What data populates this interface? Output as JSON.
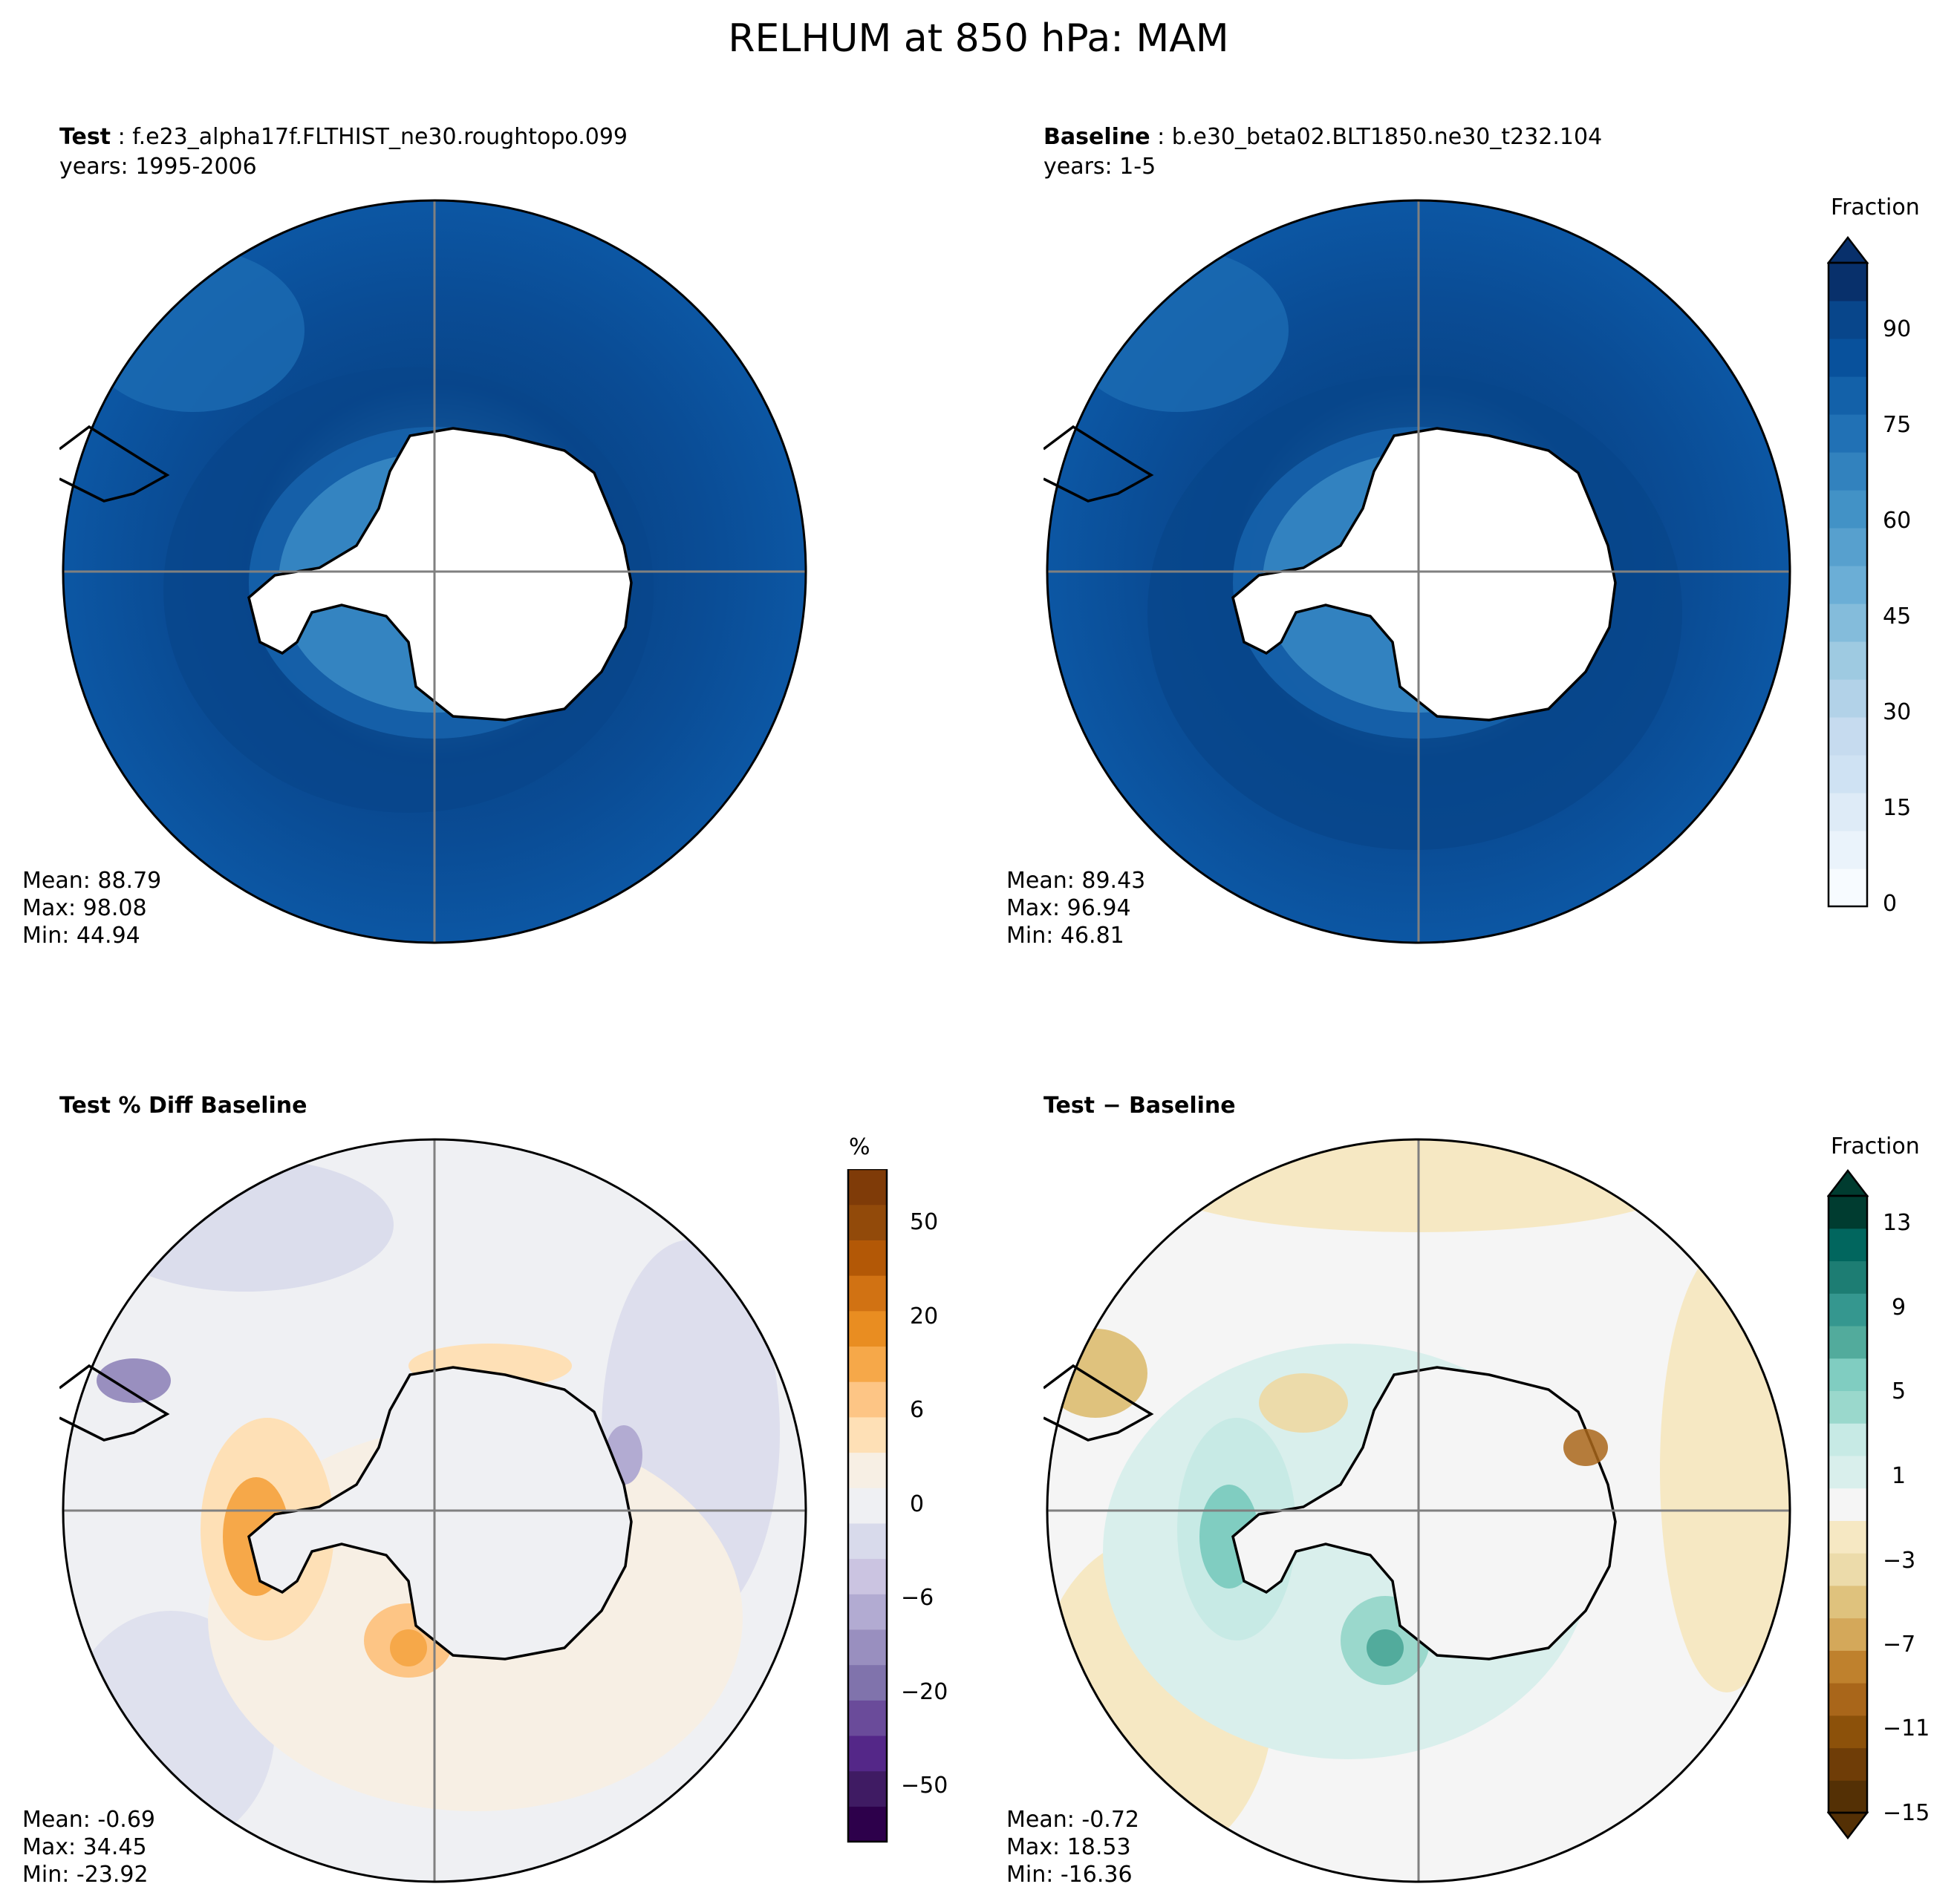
{
  "title": "RELHUM at 850 hPa: MAM",
  "panels": {
    "test": {
      "label_bold": "Test",
      "case": "f.e23_alpha17f.FLTHIST_ne30.roughtopo.099",
      "years": "years: 1995-2006",
      "stats": [
        "Mean: 88.79",
        "Max: 98.08",
        "Min: 44.94"
      ]
    },
    "baseline": {
      "label_bold": "Baseline",
      "case": "b.e30_beta02.BLT1850.ne30_t232.104",
      "years": "years: 1-5",
      "stats": [
        "Mean: 89.43",
        "Max: 96.94",
        "Min: 46.81"
      ]
    },
    "pctdiff": {
      "label_bold": "Test % Diff Baseline",
      "stats": [
        "Mean: -0.69",
        "Max: 34.45",
        "Min: -23.92"
      ]
    },
    "diff": {
      "label_bold": "Test − Baseline",
      "stats": [
        "Mean: -0.72",
        "Max: 18.53",
        "Min: -16.36"
      ]
    }
  },
  "colorbars": {
    "main": {
      "label": "Fraction",
      "ticks": [
        "0",
        "15",
        "30",
        "45",
        "60",
        "75",
        "90"
      ],
      "colors": [
        "#f7fbff",
        "#eaf3fb",
        "#deebf7",
        "#cfe2f3",
        "#c6dbef",
        "#b2d2e8",
        "#9ecae1",
        "#84bcdb",
        "#6baed6",
        "#57a0ce",
        "#4292c6",
        "#3282be",
        "#2171b5",
        "#1361a9",
        "#08519c",
        "#08468b",
        "#08306b"
      ]
    },
    "pct": {
      "label": "%",
      "ticks": [
        "−50",
        "−20",
        "−6",
        "0",
        "6",
        "20",
        "50"
      ],
      "colors": [
        "#2d004b",
        "#3f1b63",
        "#542788",
        "#6a4b9a",
        "#8073ac",
        "#998fbf",
        "#b2abd2",
        "#cbc4e1",
        "#d8daeb",
        "#eff0f3",
        "#f7efe4",
        "#fee0b6",
        "#fdc585",
        "#f6a849",
        "#e98d21",
        "#d17213",
        "#b35806",
        "#924a0a",
        "#7f3b08"
      ]
    },
    "diffbar": {
      "label": "Fraction",
      "ticks": [
        "−15",
        "−11",
        "−7",
        "−3",
        "1",
        "5",
        "9",
        "13"
      ],
      "colors": [
        "#543005",
        "#6f3d07",
        "#8c510a",
        "#a9661a",
        "#bf812d",
        "#d4a85a",
        "#dfc27d",
        "#ecdbaa",
        "#f6e8c3",
        "#f5f5f5",
        "#d9efec",
        "#c7eae5",
        "#9ad8cc",
        "#80cdc1",
        "#52ab9c",
        "#35978f",
        "#1d7d73",
        "#01665e",
        "#003c30"
      ]
    }
  }
}
